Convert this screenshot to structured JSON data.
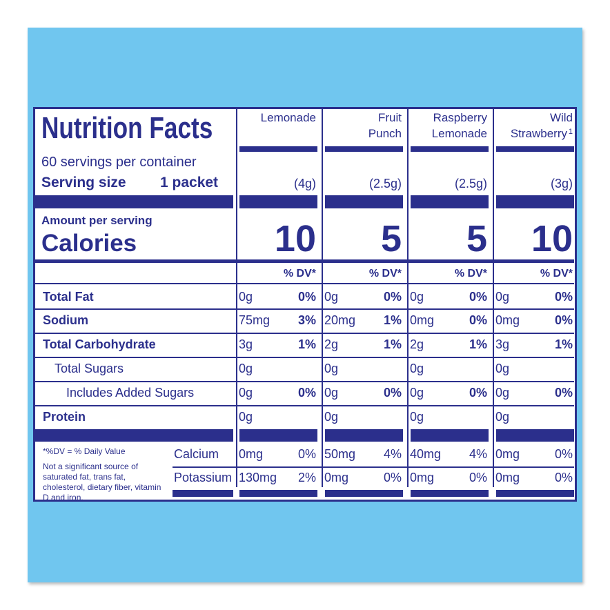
{
  "label": {
    "title": "Nutrition Facts",
    "servings": "60 servings per container",
    "serving_size_label": "Serving size",
    "serving_size_value": "1 packet",
    "amount_per_serving": "Amount per serving",
    "calories_label": "Calories",
    "dv_header": "% DV*",
    "nutrient_rows": [
      {
        "label": "Total Fat",
        "bold": true,
        "indent": 0
      },
      {
        "label": "Sodium",
        "bold": true,
        "indent": 0
      },
      {
        "label": "Total Carbohydrate",
        "bold": true,
        "indent": 0
      },
      {
        "label": "Total Sugars",
        "bold": false,
        "indent": 1
      },
      {
        "label": "Includes Added Sugars",
        "bold": false,
        "indent": 2
      },
      {
        "label": "Protein",
        "bold": true,
        "indent": 0
      }
    ],
    "mineral_rows": [
      "Calcium",
      "Potassium"
    ],
    "footnote": [
      "*%DV = % Daily Value",
      "Not a significant source of saturated fat, trans fat, cholesterol, dietary fiber, vitamin D and iron."
    ],
    "products": [
      {
        "name_lines": [
          "Lemonade"
        ],
        "serving_size": "(4g)",
        "calories": 10,
        "nutrients": [
          {
            "amount": "0g",
            "dv": "0%"
          },
          {
            "amount": "75mg",
            "dv": "3%"
          },
          {
            "amount": "3g",
            "dv": "1%"
          },
          {
            "amount": "0g"
          },
          {
            "amount": "0g",
            "dv": "0%"
          },
          {
            "amount": "0g"
          }
        ],
        "minerals": [
          {
            "amount": "0mg",
            "dv": "0%"
          },
          {
            "amount": "130mg",
            "dv": "2%"
          }
        ]
      },
      {
        "name_lines": [
          "Fruit",
          "Punch"
        ],
        "serving_size": "(2.5g)",
        "calories": 5,
        "nutrients": [
          {
            "amount": "0g",
            "dv": "0%"
          },
          {
            "amount": "20mg",
            "dv": "1%"
          },
          {
            "amount": "2g",
            "dv": "1%"
          },
          {
            "amount": "0g"
          },
          {
            "amount": "0g",
            "dv": "0%"
          },
          {
            "amount": "0g"
          }
        ],
        "minerals": [
          {
            "amount": "50mg",
            "dv": "4%"
          },
          {
            "amount": "0mg",
            "dv": "0%"
          }
        ]
      },
      {
        "name_lines": [
          "Raspberry",
          "Lemonade"
        ],
        "serving_size": "(2.5g)",
        "calories": 5,
        "nutrients": [
          {
            "amount": "0g",
            "dv": "0%"
          },
          {
            "amount": "0mg",
            "dv": "0%"
          },
          {
            "amount": "2g",
            "dv": "1%"
          },
          {
            "amount": "0g"
          },
          {
            "amount": "0g",
            "dv": "0%"
          },
          {
            "amount": "0g"
          }
        ],
        "minerals": [
          {
            "amount": "40mg",
            "dv": "4%"
          },
          {
            "amount": "0mg",
            "dv": "0%"
          }
        ]
      },
      {
        "name_lines": [
          "Wild",
          "Strawberry"
        ],
        "name_note": "1",
        "serving_size": "(3g)",
        "calories": 10,
        "nutrients": [
          {
            "amount": "0g",
            "dv": "0%"
          },
          {
            "amount": "0mg",
            "dv": "0%"
          },
          {
            "amount": "3g",
            "dv": "1%"
          },
          {
            "amount": "0g"
          },
          {
            "amount": "0g",
            "dv": "0%"
          },
          {
            "amount": "0g"
          }
        ],
        "minerals": [
          {
            "amount": "0mg",
            "dv": "0%"
          },
          {
            "amount": "0mg",
            "dv": "0%"
          }
        ]
      }
    ]
  }
}
